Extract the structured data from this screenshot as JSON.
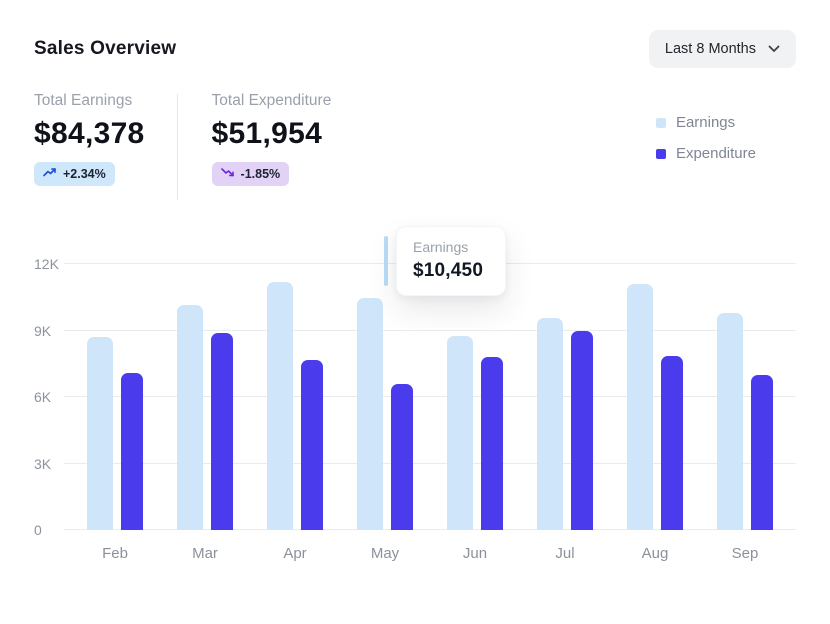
{
  "header": {
    "title": "Sales Overview",
    "range_selector": "Last 8 Months"
  },
  "stats": [
    {
      "label": "Total Earnings",
      "value": "$84,378",
      "change": "+2.34%",
      "trend": "up",
      "badge_bg": "#cfe7fa"
    },
    {
      "label": "Total Expenditure",
      "value": "$51,954",
      "change": "-1.85%",
      "trend": "down",
      "badge_bg": "#e2d3f6"
    }
  ],
  "legend": [
    {
      "label": "Earnings",
      "color": "#cfe5f9"
    },
    {
      "label": "Expenditure",
      "color": "#4a3cec"
    }
  ],
  "tooltip": {
    "label": "Earnings",
    "value": "$10,450"
  },
  "chart_data": {
    "type": "bar",
    "title": "Sales Overview",
    "categories": [
      "Feb",
      "Mar",
      "Apr",
      "May",
      "Jun",
      "Jul",
      "Aug",
      "Sep"
    ],
    "series": [
      {
        "name": "Earnings",
        "color": "#cfe5f9",
        "values": [
          8700,
          10150,
          11200,
          10450,
          8750,
          9550,
          11100,
          9800
        ]
      },
      {
        "name": "Expenditure",
        "color": "#4a3cec",
        "values": [
          7100,
          8900,
          7650,
          6600,
          7800,
          9000,
          7850,
          7000
        ]
      }
    ],
    "xlabel": "",
    "ylabel": "",
    "ylim": [
      0,
      12000
    ],
    "yticks": [
      0,
      3000,
      6000,
      9000,
      12000
    ],
    "ytick_labels": [
      "0",
      "3K",
      "6K",
      "9K",
      "12K"
    ],
    "grid": true,
    "legend_position": "top-right",
    "annotations": [
      {
        "target": "Earnings @ May",
        "text": "Earnings $10,450"
      }
    ]
  }
}
